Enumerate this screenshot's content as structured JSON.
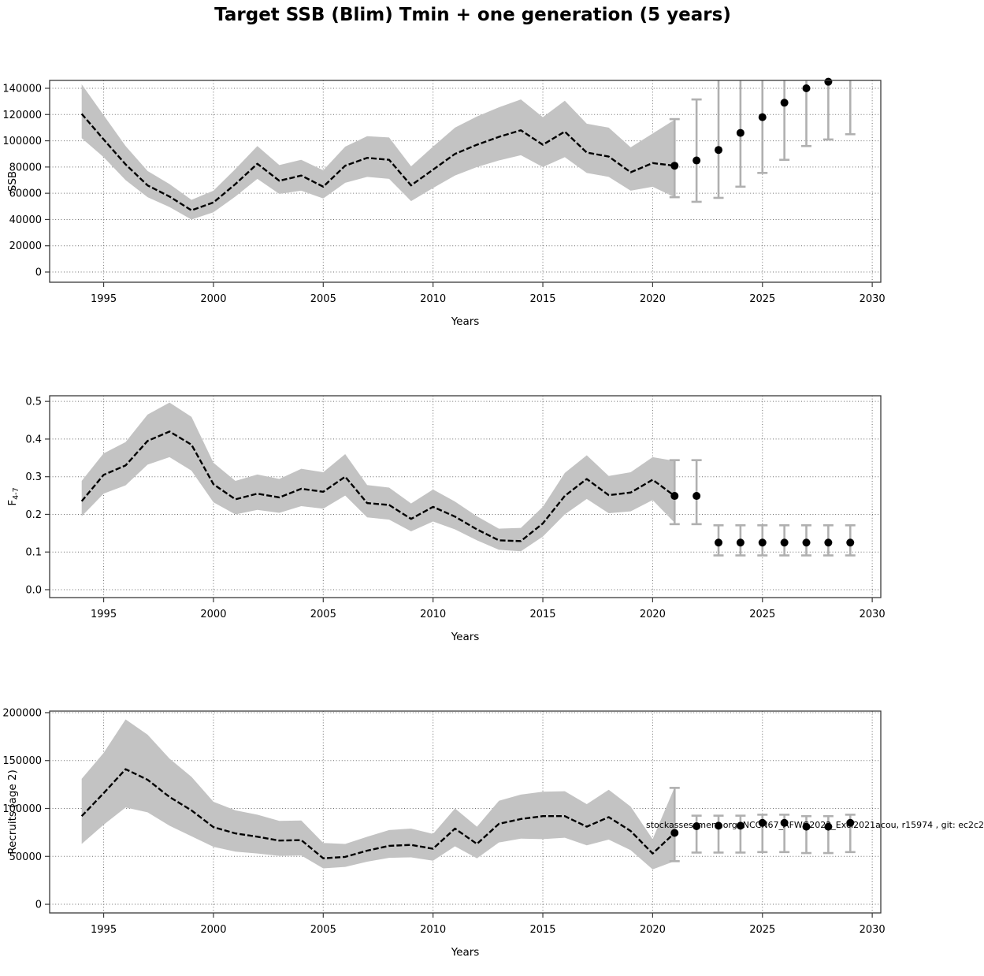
{
  "page": {
    "title": "Target SSB (Blim) Tmin + one generation (5 years)",
    "watermark": "stockassessment.org, NCCN67_AFWG2022_Excl2021acou, r15974 , git: ec2c2"
  },
  "colors": {
    "ribbon": "#c3c3c3",
    "estimate_line": "#000000",
    "error_bar": "#b0b0b0",
    "forecast_dot": "#000000",
    "grid": "#6e6e6e",
    "axis": "#3a3a3a"
  },
  "chart_data": [
    {
      "type": "line",
      "name": "ssb",
      "title": "",
      "xlabel": "Years",
      "ylabel": "SSB",
      "ylabel_sub": "",
      "xlim": [
        1992.54,
        2030.39
      ],
      "ylim": [
        -7800,
        146000
      ],
      "grid": true,
      "legend": "none",
      "xticks": [
        1995,
        2000,
        2005,
        2010,
        2015,
        2020,
        2025,
        2030
      ],
      "yticks": [
        0,
        20000,
        40000,
        60000,
        80000,
        100000,
        120000,
        140000
      ],
      "ytick_labels": [
        "0",
        "20000",
        "40000",
        "60000",
        "80000",
        "100000",
        "120000",
        "140000"
      ],
      "series": {
        "name": "estimate-with-95ci",
        "x": [
          1994,
          1995,
          1996,
          1997,
          1998,
          1999,
          2000,
          2001,
          2002,
          2003,
          2004,
          2005,
          2006,
          2007,
          2008,
          2009,
          2010,
          2011,
          2012,
          2013,
          2014,
          2015,
          2016,
          2017,
          2018,
          2019,
          2020,
          2021
        ],
        "y": [
          120500,
          101000,
          82000,
          66000,
          57500,
          47000,
          53000,
          67000,
          82500,
          69500,
          73500,
          65000,
          81000,
          87000,
          85500,
          66000,
          78000,
          90000,
          97000,
          103000,
          108000,
          97000,
          107000,
          91000,
          88000,
          76000,
          83000,
          81000
        ],
        "lower": [
          102000,
          87500,
          70000,
          57000,
          49500,
          40000,
          45500,
          57500,
          71000,
          59500,
          62000,
          56000,
          68000,
          72500,
          71000,
          54000,
          64000,
          73500,
          80000,
          85000,
          89000,
          80000,
          87500,
          75500,
          72500,
          62000,
          65000,
          57000
        ],
        "upper": [
          143000,
          119500,
          96000,
          77000,
          67000,
          55000,
          62000,
          78500,
          96000,
          81500,
          85500,
          77500,
          95500,
          103500,
          102500,
          80500,
          95500,
          110000,
          118500,
          125500,
          131500,
          118000,
          130500,
          113000,
          110000,
          95000,
          105500,
          116000
        ]
      },
      "forecast": {
        "name": "forecast-median-with-interval",
        "x": [
          2021,
          2022,
          2023,
          2024,
          2025,
          2026,
          2027,
          2028,
          2029
        ],
        "y": [
          81000,
          85000,
          93000,
          106000,
          118000,
          129000,
          140000,
          145000,
          null
        ],
        "lower": [
          57000,
          53500,
          56500,
          65000,
          75500,
          85500,
          96000,
          101000,
          105000
        ],
        "upper": [
          116500,
          131500,
          null,
          null,
          null,
          null,
          null,
          null,
          null
        ]
      }
    },
    {
      "type": "line",
      "name": "fishing-mortality",
      "title": "",
      "xlabel": "Years",
      "ylabel": "F",
      "ylabel_sub": "4-7",
      "xlim": [
        1992.54,
        2030.39
      ],
      "ylim": [
        -0.021,
        0.515
      ],
      "grid": true,
      "legend": "none",
      "xticks": [
        1995,
        2000,
        2005,
        2010,
        2015,
        2020,
        2025,
        2030
      ],
      "yticks": [
        0.0,
        0.1,
        0.2,
        0.3,
        0.4,
        0.5
      ],
      "ytick_labels": [
        "0.0",
        "0.1",
        "0.2",
        "0.3",
        "0.4",
        "0.5"
      ],
      "series": {
        "name": "estimate-with-95ci",
        "x": [
          1994,
          1995,
          1996,
          1997,
          1998,
          1999,
          2000,
          2001,
          2002,
          2003,
          2004,
          2005,
          2006,
          2007,
          2008,
          2009,
          2010,
          2011,
          2012,
          2013,
          2014,
          2015,
          2016,
          2017,
          2018,
          2019,
          2020,
          2021
        ],
        "y": [
          0.235,
          0.305,
          0.33,
          0.395,
          0.42,
          0.385,
          0.28,
          0.24,
          0.255,
          0.245,
          0.268,
          0.26,
          0.3,
          0.23,
          0.225,
          0.188,
          0.22,
          0.194,
          0.16,
          0.131,
          0.129,
          0.176,
          0.249,
          0.294,
          0.251,
          0.258,
          0.292,
          0.249
        ],
        "lower": [
          0.195,
          0.255,
          0.277,
          0.332,
          0.352,
          0.316,
          0.232,
          0.2,
          0.212,
          0.204,
          0.222,
          0.215,
          0.25,
          0.192,
          0.186,
          0.155,
          0.181,
          0.16,
          0.131,
          0.106,
          0.102,
          0.141,
          0.2,
          0.241,
          0.203,
          0.208,
          0.238,
          0.178
        ],
        "upper": [
          0.289,
          0.362,
          0.392,
          0.465,
          0.497,
          0.459,
          0.337,
          0.289,
          0.306,
          0.294,
          0.321,
          0.312,
          0.36,
          0.278,
          0.271,
          0.229,
          0.266,
          0.234,
          0.195,
          0.162,
          0.164,
          0.22,
          0.31,
          0.357,
          0.302,
          0.312,
          0.352,
          0.342
        ]
      },
      "forecast": {
        "name": "forecast-median-with-interval",
        "x": [
          2021,
          2022,
          2023,
          2024,
          2025,
          2026,
          2027,
          2028,
          2029
        ],
        "y": [
          0.249,
          0.249,
          0.125,
          0.125,
          0.125,
          0.125,
          0.125,
          0.125,
          0.125
        ],
        "lower": [
          0.174,
          0.174,
          0.091,
          0.091,
          0.091,
          0.091,
          0.091,
          0.091,
          0.091
        ],
        "upper": [
          0.344,
          0.344,
          0.171,
          0.171,
          0.171,
          0.171,
          0.171,
          0.171,
          0.171
        ]
      }
    },
    {
      "type": "line",
      "name": "recruitment",
      "title": "",
      "xlabel": "Years",
      "ylabel": "Recruits (age 2)",
      "ylabel_sub": "",
      "xlim": [
        1992.54,
        2030.39
      ],
      "ylim": [
        -9000,
        201600
      ],
      "grid": true,
      "legend": "none",
      "xticks": [
        1995,
        2000,
        2005,
        2010,
        2015,
        2020,
        2025,
        2030
      ],
      "yticks": [
        0,
        50000,
        100000,
        150000,
        200000
      ],
      "ytick_labels": [
        "0",
        "50000",
        "100000",
        "150000",
        "200000"
      ],
      "series": {
        "name": "estimate-with-95ci",
        "x": [
          1994,
          1995,
          1996,
          1997,
          1998,
          1999,
          2000,
          2001,
          2002,
          2003,
          2004,
          2005,
          2006,
          2007,
          2008,
          2009,
          2010,
          2011,
          2012,
          2013,
          2014,
          2015,
          2016,
          2017,
          2018,
          2019,
          2020,
          2021
        ],
        "y": [
          92000,
          116000,
          141000,
          130000,
          112000,
          98000,
          80500,
          74000,
          70500,
          66500,
          67000,
          48000,
          49500,
          56000,
          61000,
          62000,
          58000,
          79000,
          63000,
          84000,
          89000,
          92000,
          92000,
          81000,
          91000,
          76500,
          53000,
          74500
        ],
        "lower": [
          63000,
          83000,
          101000,
          96000,
          82000,
          71000,
          60000,
          55000,
          53000,
          50500,
          51000,
          37500,
          39000,
          44500,
          48500,
          49000,
          45500,
          60500,
          48000,
          64500,
          68500,
          68000,
          69500,
          61500,
          67500,
          56500,
          36500,
          45000
        ],
        "upper": [
          131000,
          158000,
          193000,
          177000,
          152000,
          133000,
          107000,
          98000,
          93500,
          87000,
          87500,
          64000,
          63000,
          70500,
          77500,
          79000,
          73500,
          100000,
          81000,
          108000,
          114500,
          117500,
          118000,
          104500,
          119500,
          102000,
          68000,
          122000
        ]
      },
      "forecast": {
        "name": "forecast-median-with-interval",
        "x": [
          2021,
          2022,
          2023,
          2024,
          2025,
          2026,
          2027,
          2028,
          2029
        ],
        "y": [
          74500,
          81500,
          82000,
          82000,
          85000,
          85000,
          81000,
          81000,
          85000
        ],
        "lower": [
          45000,
          54000,
          54000,
          54000,
          54500,
          54500,
          53500,
          53500,
          54500
        ],
        "upper": [
          121500,
          92500,
          92500,
          92500,
          93500,
          93500,
          92000,
          92000,
          93500
        ]
      }
    }
  ]
}
